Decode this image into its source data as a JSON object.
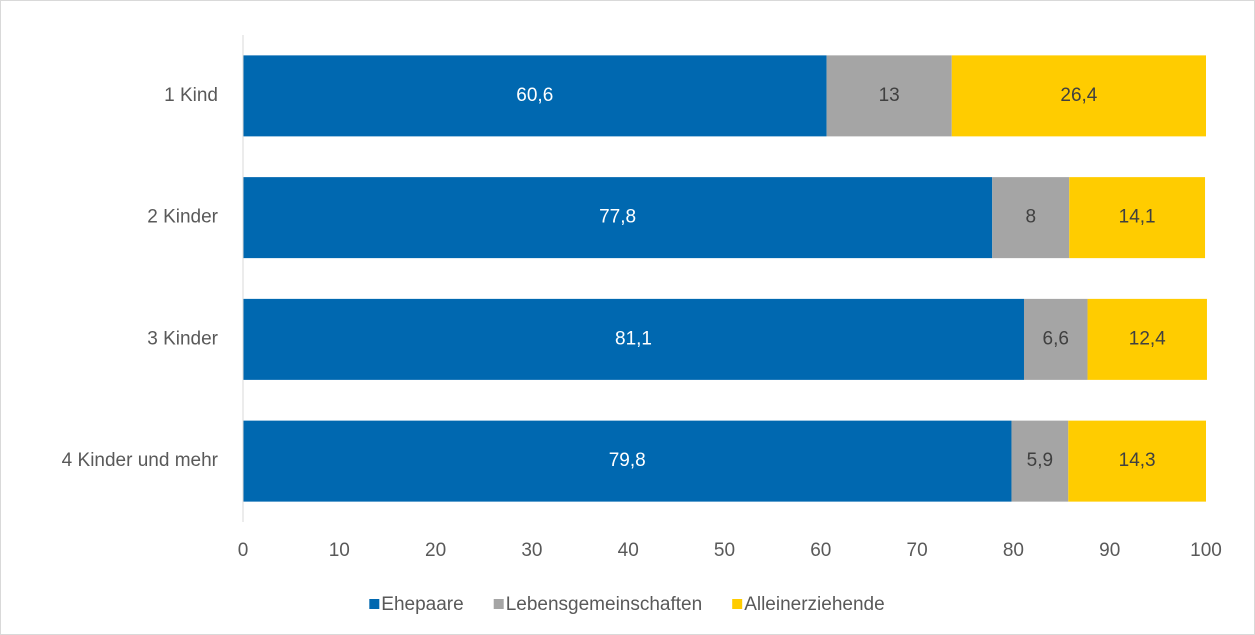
{
  "chart_data": {
    "type": "stacked_bar_horizontal",
    "categories": [
      "1 Kind",
      "2 Kinder",
      "3 Kinder",
      "4 Kinder und mehr"
    ],
    "series": [
      {
        "name": "Ehepaare",
        "color": "#0068b0",
        "values": [
          60.6,
          77.8,
          81.1,
          79.8
        ],
        "value_labels": [
          "60,6",
          "77,8",
          "81,1",
          "79,8"
        ]
      },
      {
        "name": "Lebensgemeinschaften",
        "color": "#a5a5a5",
        "values": [
          13,
          8,
          6.6,
          5.9
        ],
        "value_labels": [
          "13",
          "8",
          "6,6",
          "5,9"
        ]
      },
      {
        "name": "Alleinerziehende",
        "color": "#ffcc00",
        "values": [
          26.4,
          14.1,
          12.4,
          14.3
        ],
        "value_labels": [
          "26,4",
          "14,1",
          "12,4",
          "14,3"
        ]
      }
    ],
    "xlim": [
      0,
      100
    ],
    "xticks": [
      0,
      10,
      20,
      30,
      40,
      50,
      60,
      70,
      80,
      90,
      100
    ],
    "grid": false,
    "legend": "bottom"
  }
}
